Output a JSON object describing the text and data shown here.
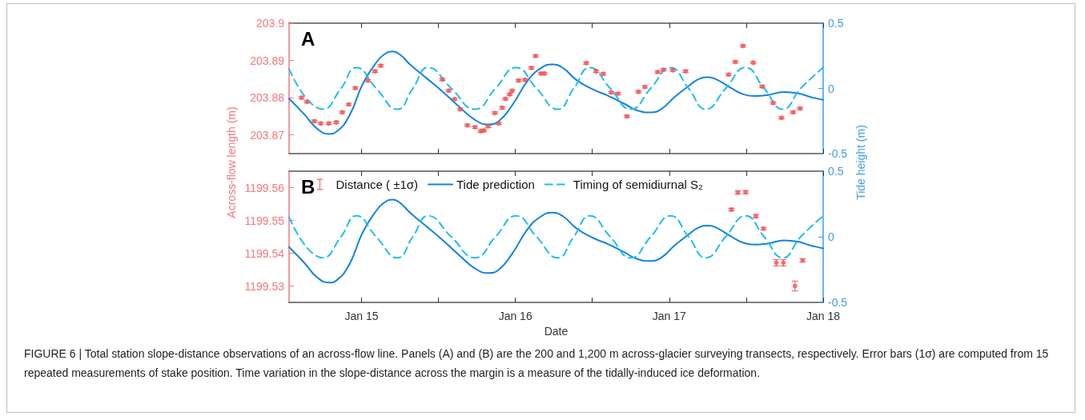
{
  "chart_data": [
    {
      "type": "line",
      "title": "A",
      "ylabel": "Across-flow length (m)",
      "y2label": "Tide height (m)",
      "xlim": [
        "--01-14T12:42",
        "--01-18"
      ],
      "xticks": [
        {
          "value": "--01-15",
          "label": null
        },
        {
          "value": "--01-15T12:00",
          "label": null
        },
        {
          "value": "--01-16",
          "label": null
        },
        {
          "value": "--01-16T12:00",
          "label": null
        },
        {
          "value": "--01-17",
          "label": null
        },
        {
          "value": "--01-17T12:00",
          "label": null
        },
        {
          "value": "--01-18",
          "label": null
        }
      ],
      "ylim": [
        203.865,
        203.9
      ],
      "yticks": [
        203.87,
        203.88,
        203.89,
        203.9
      ],
      "y2lim": [
        -0.5,
        0.5
      ],
      "y2ticks": [
        -0.5,
        0,
        0.5
      ],
      "tick_labels": "y",
      "grid": false,
      "legend": false,
      "series": [
        {
          "type": "scatter",
          "color": "#f0585a",
          "x": [
            "--01-14T14:39",
            "--01-14T15:30",
            "--01-14T16:39",
            "--01-14T17:39",
            "--01-14T18:54",
            "--01-14T20:04",
            "--01-14T21:00",
            "--01-14T22:00",
            "--01-14T23:03",
            "--01-15T01:00",
            "--01-15T02:06",
            "--01-15T03:00",
            "--01-15T12:36",
            "--01-15T13:36",
            "--01-15T14:30",
            "--01-15T15:24",
            "--01-15T16:30",
            "--01-15T17:42",
            "--01-15T18:36",
            "--01-15T19:06",
            "--01-15T19:45",
            "--01-15T20:48",
            "--01-15T21:24",
            "--01-15T21:57",
            "--01-15T22:27",
            "--01-15T23:06",
            "--01-15T23:30",
            "--01-16T00:30",
            "--01-16T01:30",
            "--01-16T02:30",
            "--01-16T03:09",
            "--01-16T04:00",
            "--01-16T04:30",
            "--01-16T11:03",
            "--01-16T12:36",
            "--01-16T13:42",
            "--01-16T14:57",
            "--01-16T16:00",
            "--01-16T17:24",
            "--01-16T19:12",
            "--01-16T20:12",
            "--01-16T22:12",
            "--01-16T23:06",
            "--01-17T00:33",
            "--01-17T02:33",
            "--01-17T09:15",
            "--01-17T10:18",
            "--01-17T11:30",
            "--01-17T13:06",
            "--01-17T14:30",
            "--01-17T16:12",
            "--01-17T17:30",
            "--01-17T19:18",
            "--01-17T20:24"
          ],
          "values": [
            203.88,
            203.8789,
            203.8737,
            203.8731,
            203.8731,
            203.8734,
            203.8761,
            203.8782,
            203.8826,
            203.8846,
            203.8871,
            203.8886,
            203.8849,
            203.8819,
            203.8796,
            203.8769,
            203.8726,
            203.8721,
            203.871,
            203.8712,
            203.8723,
            203.8759,
            203.8731,
            203.8773,
            203.8797,
            203.8809,
            203.8819,
            203.8846,
            203.8848,
            203.888,
            203.8912,
            203.8865,
            203.8865,
            203.8893,
            203.8871,
            203.8864,
            203.8814,
            203.8811,
            203.875,
            203.8816,
            203.8829,
            203.8869,
            203.8875,
            203.8874,
            203.8871,
            203.8862,
            203.8896,
            203.8939,
            203.8894,
            203.883,
            203.8786,
            203.8746,
            203.8761,
            203.8771
          ],
          "errors": [
            0.0003,
            0.0003,
            0.0003,
            0.0003,
            0.0003,
            0.0003,
            0.0003,
            0.0003,
            0.0003,
            0.0003,
            0.0003,
            0.0003,
            0.0003,
            0.0003,
            0.0003,
            0.0003,
            0.0003,
            0.0003,
            0.0003,
            0.0003,
            0.0003,
            0.0003,
            0.0003,
            0.0003,
            0.0003,
            0.0003,
            0.0003,
            0.0003,
            0.0003,
            0.0003,
            0.0003,
            0.0003,
            0.0003,
            0.0003,
            0.0003,
            0.0003,
            0.0003,
            0.0003,
            0.0003,
            0.0003,
            0.0003,
            0.0003,
            0.0003,
            0.0003,
            0.0003,
            0.0003,
            0.0003,
            0.0003,
            0.0003,
            0.0003,
            0.0003,
            0.0003,
            0.0003,
            0.0003
          ]
        },
        {
          "type": "line",
          "axis": "y2",
          "color": "#1283e0",
          "line_style": "solid",
          "x": [
            "--01-14T12:42",
            "--01-14T15:06",
            "--01-14T17:09",
            "--01-14T18:57",
            "--01-14T20:04",
            "--01-14T22:06",
            "--01-15T00:12",
            "--01-15T02:18",
            "--01-15T03:30",
            "--01-15T04:54",
            "--01-15T06:00",
            "--01-15T07:42",
            "--01-15T10:12",
            "--01-15T12:42",
            "--01-15T15:12",
            "--01-15T17:42",
            "--01-15T19:45",
            "--01-15T21:24",
            "--01-15T23:30",
            "--01-16T02:00",
            "--01-16T04:03",
            "--01-16T05:42",
            "--01-16T07:24",
            "--01-16T09:30",
            "--01-16T12:00",
            "--01-16T14:30",
            "--01-16T17:00",
            "--01-16T19:00",
            "--01-16T21:06",
            "--01-16T22:45",
            "--01-17T00:48",
            "--01-17T02:54",
            "--01-17T04:36",
            "--01-17T06:06",
            "--01-17T07:30",
            "--01-17T09:36",
            "--01-17T11:39",
            "--01-17T13:18",
            "--01-17T15:24",
            "--01-17T17:54",
            "--01-17T20:00",
            "--01-17T22:06",
            "--01-18T00:00"
          ],
          "values": [
            -0.078,
            -0.2,
            -0.312,
            -0.349,
            -0.333,
            -0.21,
            0.035,
            0.198,
            0.259,
            0.284,
            0.259,
            0.178,
            0.076,
            -0.027,
            -0.139,
            -0.241,
            -0.276,
            -0.251,
            -0.129,
            0.065,
            0.157,
            0.184,
            0.157,
            0.065,
            -0.006,
            -0.057,
            -0.118,
            -0.169,
            -0.184,
            -0.159,
            -0.067,
            0.014,
            0.071,
            0.086,
            0.065,
            0.004,
            -0.047,
            -0.059,
            -0.051,
            -0.027,
            -0.037,
            -0.067,
            -0.088
          ]
        },
        {
          "type": "line",
          "axis": "y2",
          "color": "#1ebdf0",
          "line_style": "dashed",
          "x": [
            "--01-14T12:42",
            "--01-14T18:00",
            "--01-14T20:48",
            "--01-14T23:12",
            "--01-15T02:18",
            "--01-15T05:36",
            "--01-15T08:00",
            "--01-15T10:24",
            "--01-15T14:00",
            "--01-15T17:42",
            "--01-15T20:54",
            "--01-16T00:06",
            "--01-16T03:18",
            "--01-16T06:36",
            "--01-16T09:06",
            "--01-16T11:36",
            "--01-16T14:48",
            "--01-16T18:00",
            "--01-16T21:06",
            "--01-17T00:12",
            "--01-17T03:00",
            "--01-17T05:42",
            "--01-17T08:48",
            "--01-17T11:54",
            "--01-17T14:48",
            "--01-17T17:42",
            "--01-17T20:30",
            "--01-18T00:00"
          ],
          "values": [
            0.15,
            -0.16,
            0,
            0.16,
            0,
            -0.16,
            0,
            0.16,
            0,
            -0.16,
            0,
            0.16,
            0,
            -0.16,
            0,
            0.16,
            0,
            -0.16,
            0,
            0.16,
            0,
            -0.16,
            0,
            0.16,
            0,
            -0.16,
            0,
            0.16
          ]
        }
      ]
    },
    {
      "type": "line",
      "title": "B",
      "xlabel": "Date",
      "xlim": [
        "--01-14T12:42",
        "--01-18"
      ],
      "xticks": [
        {
          "value": "--01-15",
          "label": "Jan 15"
        },
        {
          "value": "--01-15T12:00",
          "label": null
        },
        {
          "value": "--01-16",
          "label": "Jan 16"
        },
        {
          "value": "--01-16T12:00",
          "label": null
        },
        {
          "value": "--01-17",
          "label": "Jan 17"
        },
        {
          "value": "--01-17T12:00",
          "label": null
        },
        {
          "value": "--01-18",
          "label": "Jan 18"
        }
      ],
      "ylim": [
        1199.525,
        1199.565
      ],
      "yticks": [
        1199.53,
        1199.54,
        1199.55,
        1199.56
      ],
      "y2lim": [
        -0.5,
        0.5
      ],
      "y2ticks": [
        -0.5,
        0,
        0.5
      ],
      "grid": false,
      "legend": "top left",
      "annotations": [
        "FIGURE 6 | Total station slope-distance observations of an across-flow line. Panels (A) and (B) are the 200 and 1,200 m across-glacier surveying transects, respectively. Error bars (1σ) are computed from 15 repeated measurements of stake position. Time variation in the slope-distance across the margin is a measure of the tidally-induced ice deformation."
      ],
      "series": [
        {
          "type": "scatter",
          "name": "Distance ( ±1σ)",
          "color": "#f0585a",
          "x": [
            "--01-17T09:42",
            "--01-17T10:42",
            "--01-17T11:54",
            "--01-17T13:30",
            "--01-17T14:42",
            "--01-17T16:42",
            "--01-17T17:48",
            "--01-17T19:36",
            "--01-17T20:48"
          ],
          "values": [
            1199.5533,
            1199.5585,
            1199.5586,
            1199.5513,
            1199.5475,
            1199.5371,
            1199.5371,
            1199.53,
            1199.5378
          ],
          "errors": [
            0.0004,
            0.0005,
            0.0005,
            0.0005,
            0.0004,
            0.001,
            0.001,
            0.0015,
            0.0005
          ]
        },
        {
          "type": "line",
          "name": "Tide prediction",
          "axis": "y2",
          "color": "#1283e0",
          "line_style": "solid",
          "x": [
            "--01-14T12:42",
            "--01-14T15:06",
            "--01-14T17:09",
            "--01-14T18:57",
            "--01-14T20:04",
            "--01-14T22:06",
            "--01-15T00:12",
            "--01-15T02:18",
            "--01-15T03:30",
            "--01-15T04:54",
            "--01-15T06:00",
            "--01-15T07:42",
            "--01-15T10:12",
            "--01-15T12:42",
            "--01-15T15:12",
            "--01-15T17:42",
            "--01-15T19:45",
            "--01-15T21:24",
            "--01-15T23:30",
            "--01-16T02:00",
            "--01-16T04:03",
            "--01-16T05:42",
            "--01-16T07:24",
            "--01-16T09:30",
            "--01-16T12:00",
            "--01-16T14:30",
            "--01-16T17:00",
            "--01-16T19:00",
            "--01-16T21:06",
            "--01-16T22:45",
            "--01-17T00:48",
            "--01-17T02:54",
            "--01-17T04:36",
            "--01-17T06:06",
            "--01-17T07:30",
            "--01-17T09:36",
            "--01-17T11:39",
            "--01-17T13:18",
            "--01-17T15:24",
            "--01-17T17:54",
            "--01-17T20:00",
            "--01-17T22:06",
            "--01-18T00:00"
          ],
          "values": [
            -0.078,
            -0.2,
            -0.312,
            -0.349,
            -0.333,
            -0.21,
            0.035,
            0.198,
            0.259,
            0.284,
            0.259,
            0.178,
            0.076,
            -0.027,
            -0.139,
            -0.241,
            -0.276,
            -0.251,
            -0.129,
            0.065,
            0.157,
            0.184,
            0.157,
            0.065,
            -0.006,
            -0.057,
            -0.118,
            -0.169,
            -0.184,
            -0.159,
            -0.067,
            0.014,
            0.071,
            0.086,
            0.065,
            0.004,
            -0.047,
            -0.059,
            -0.051,
            -0.027,
            -0.037,
            -0.067,
            -0.088
          ]
        },
        {
          "type": "line",
          "name": "Timing of semidiurnal S₂",
          "axis": "y2",
          "color": "#1ebdf0",
          "line_style": "dashed",
          "x": [
            "--01-14T12:42",
            "--01-14T18:00",
            "--01-14T20:48",
            "--01-14T23:12",
            "--01-15T02:18",
            "--01-15T05:36",
            "--01-15T08:00",
            "--01-15T10:24",
            "--01-15T14:00",
            "--01-15T17:42",
            "--01-15T20:54",
            "--01-16T00:06",
            "--01-16T03:18",
            "--01-16T06:36",
            "--01-16T09:06",
            "--01-16T11:36",
            "--01-16T14:48",
            "--01-16T18:00",
            "--01-16T21:06",
            "--01-17T00:12",
            "--01-17T03:00",
            "--01-17T05:42",
            "--01-17T08:48",
            "--01-17T11:54",
            "--01-17T14:48",
            "--01-17T17:42",
            "--01-17T20:30",
            "--01-18T00:00"
          ],
          "values": [
            0.15,
            -0.16,
            0,
            0.16,
            0,
            -0.16,
            0,
            0.16,
            0,
            -0.16,
            0,
            0.16,
            0,
            -0.16,
            0,
            0.16,
            0,
            -0.16,
            0,
            0.16,
            0,
            -0.16,
            0,
            0.16,
            0,
            -0.16,
            0,
            0.16
          ]
        }
      ]
    }
  ]
}
